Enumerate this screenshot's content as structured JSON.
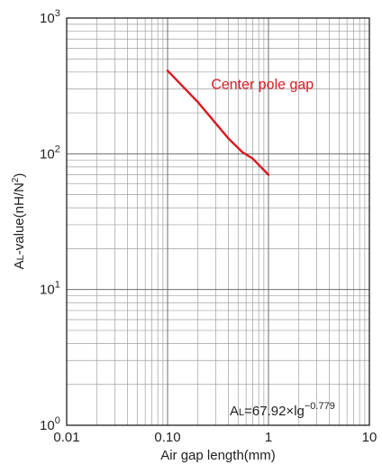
{
  "chart_data": {
    "type": "line",
    "x_scale": "log",
    "y_scale": "log",
    "xlim": [
      0.01,
      10
    ],
    "ylim": [
      1,
      1000
    ],
    "grid": true,
    "x_ticks": [
      {
        "value": 0.01,
        "label": "0.01"
      },
      {
        "value": 0.1,
        "label": "0.10"
      },
      {
        "value": 1,
        "label": "1"
      },
      {
        "value": 10,
        "label": "10"
      }
    ],
    "y_ticks": [
      {
        "value": 1,
        "base": "10",
        "exp": "0"
      },
      {
        "value": 10,
        "base": "10",
        "exp": "1"
      },
      {
        "value": 100,
        "base": "10",
        "exp": "2"
      },
      {
        "value": 1000,
        "base": "10",
        "exp": "3"
      }
    ],
    "xlabel": "Air gap length(mm)",
    "ylabel": {
      "main": "A",
      "sub": "L",
      "rest": "-value(nH/N",
      "sup": "2",
      "end": ")"
    },
    "series": [
      {
        "name": "Center pole gap",
        "color": "#d71920",
        "x": [
          0.1,
          0.2,
          0.4,
          0.55,
          0.7,
          1.0
        ],
        "y": [
          410,
          240,
          130,
          103,
          92,
          70
        ]
      }
    ],
    "annotation": {
      "prefix": "A",
      "sub": "L",
      "mid": "=67.92×lg",
      "sup": "−0.779"
    }
  }
}
